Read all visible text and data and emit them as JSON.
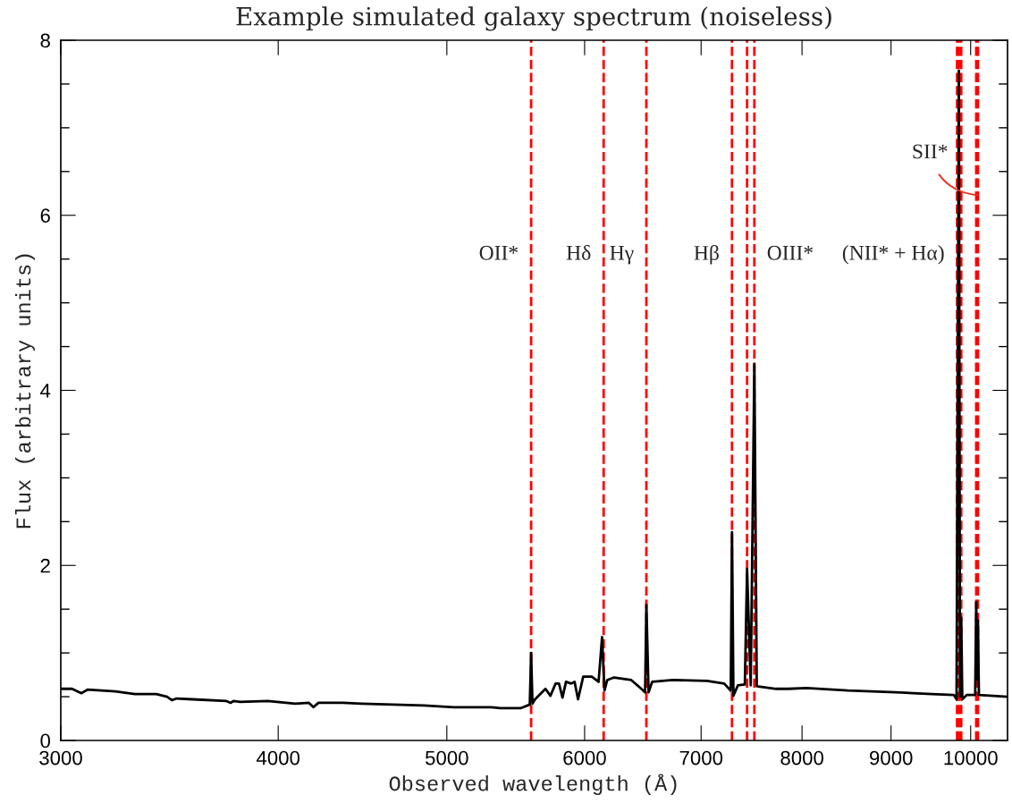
{
  "chart_data": {
    "type": "line",
    "title": "Example simulated galaxy spectrum (noiseless)",
    "xlabel": "Observed wavelength (Å)",
    "ylabel": "Flux (arbitrary units)",
    "log": "x",
    "xlim": [
      3000,
      10500
    ],
    "xticks": [
      3000,
      4000,
      5000,
      6000,
      7000,
      8000,
      9000,
      10000
    ],
    "ylim": [
      0,
      8
    ],
    "yticks": [
      0,
      {
        "value": 0.5,
        "label": null
      },
      {
        "value": 1,
        "label": null
      },
      {
        "value": 1.5,
        "label": null
      },
      2,
      {
        "value": 2.5,
        "label": null
      },
      {
        "value": 3,
        "label": null
      },
      {
        "value": 3.5,
        "label": null
      },
      4,
      {
        "value": 4.5,
        "label": null
      },
      {
        "value": 5,
        "label": null
      },
      {
        "value": 5.5,
        "label": null
      },
      6,
      {
        "value": 6.5,
        "label": null
      },
      {
        "value": 7,
        "label": null
      },
      {
        "value": 7.5,
        "label": null
      },
      8
    ],
    "grid": false,
    "legend": false,
    "marker": "none",
    "line_style": "solid",
    "series": [
      {
        "color": "#000000",
        "x": [
          3000,
          3045,
          3083,
          3108,
          3224,
          3309,
          3404,
          3453,
          3475,
          3497,
          3571,
          3735,
          3756,
          3770,
          3804,
          3945,
          4091,
          4166,
          4191,
          4219,
          4358,
          4468,
          4851,
          5047,
          5304,
          5367,
          5516,
          5580,
          5590,
          5600,
          5619,
          5697,
          5735,
          5774,
          5800,
          5827,
          5854,
          5894,
          5921,
          5948,
          5989,
          6057,
          6112,
          6140,
          6160,
          6182,
          6238,
          6382,
          6468,
          6500,
          6511,
          6530,
          6561,
          6742,
          7055,
          7217,
          7280,
          7292,
          7306,
          7349,
          7417,
          7439,
          7475,
          7511,
          7535,
          7731,
          7859,
          8047,
          8500,
          9054,
          9500,
          9780,
          9815,
          9845,
          9860,
          9876,
          9890,
          9950,
          10060,
          10074,
          10085,
          10097,
          10110,
          10500
        ],
        "values": [
          0.59,
          0.59,
          0.54,
          0.58,
          0.56,
          0.53,
          0.53,
          0.5,
          0.46,
          0.48,
          0.47,
          0.45,
          0.43,
          0.45,
          0.44,
          0.45,
          0.42,
          0.43,
          0.38,
          0.43,
          0.43,
          0.42,
          0.4,
          0.38,
          0.38,
          0.37,
          0.37,
          0.41,
          1.0,
          0.42,
          0.47,
          0.59,
          0.51,
          0.65,
          0.65,
          0.49,
          0.67,
          0.65,
          0.67,
          0.47,
          0.73,
          0.73,
          0.67,
          1.18,
          0.57,
          0.69,
          0.72,
          0.69,
          0.59,
          0.55,
          1.55,
          0.55,
          0.67,
          0.69,
          0.68,
          0.65,
          0.57,
          2.38,
          0.51,
          0.63,
          0.64,
          1.96,
          0.63,
          4.3,
          0.62,
          0.59,
          0.59,
          0.6,
          0.57,
          0.55,
          0.53,
          0.52,
          0.47,
          7.65,
          0.5,
          1.4,
          0.47,
          0.52,
          0.52,
          1.58,
          0.7,
          1.37,
          0.52,
          0.5
        ]
      }
    ],
    "ref_lines": [
      {
        "axis": "x",
        "value": 5590,
        "color": "#ff0000",
        "line_style": "dashed"
      },
      {
        "axis": "x",
        "value": 6153,
        "color": "#ff0000",
        "line_style": "dashed"
      },
      {
        "axis": "x",
        "value": 6511,
        "color": "#ff0000",
        "line_style": "dashed"
      },
      {
        "axis": "x",
        "value": 7292,
        "color": "#ff0000",
        "line_style": "dashed"
      },
      {
        "axis": "x",
        "value": 7439,
        "color": "#ff0000",
        "line_style": "dashed"
      },
      {
        "axis": "x",
        "value": 7511,
        "color": "#ff0000",
        "line_style": "dashed"
      },
      {
        "axis": "x",
        "value": 9822,
        "color": "#ff0000",
        "line_style": "dashed"
      },
      {
        "axis": "x",
        "value": 9845,
        "color": "#ff0000",
        "line_style": "dashed"
      },
      {
        "axis": "x",
        "value": 9876,
        "color": "#ff0000",
        "line_style": "dashed"
      },
      {
        "axis": "x",
        "value": 10074,
        "color": "#ff0000",
        "line_style": "dashed"
      },
      {
        "axis": "x",
        "value": 10097,
        "color": "#ff0000",
        "line_style": "dashed"
      }
    ],
    "annotations": [
      {
        "text": "OII*",
        "x": 5590,
        "y": 5.55
      },
      {
        "text": "Hδ",
        "x": 6153,
        "y": 5.55
      },
      {
        "text": "Hγ",
        "x": 6511,
        "y": 5.55
      },
      {
        "text": "Hβ",
        "x": 7292,
        "y": 5.55
      },
      {
        "text": "OIII*",
        "x": 7511,
        "y": 5.55
      },
      {
        "text": "(NII* + Hα)",
        "x": 9822,
        "y": 5.55
      },
      {
        "text": "SII*",
        "x": 10086,
        "y": 6.23
      }
    ]
  }
}
